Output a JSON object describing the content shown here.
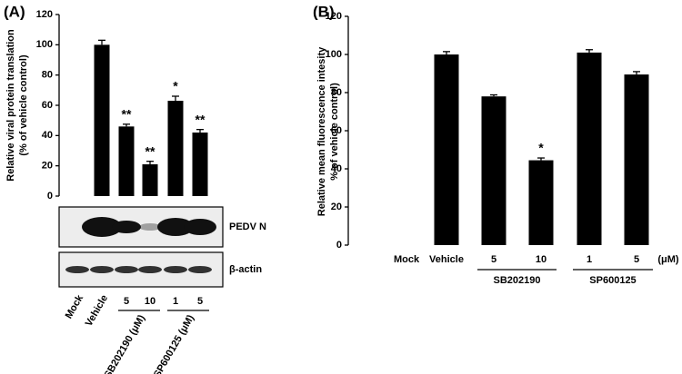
{
  "chart_data": [
    {
      "type": "bar",
      "panel_label": "(A)",
      "y_label": [
        "Relative viral protein translation",
        "(% of vehicle control)"
      ],
      "categories": [
        "Mock",
        "Vehicle",
        "5",
        "10",
        "1",
        "5"
      ],
      "values": [
        0,
        100,
        46,
        21,
        63,
        42
      ],
      "errors": [
        0,
        3,
        1.5,
        2,
        3,
        2
      ],
      "annotations": [
        null,
        null,
        "**",
        "**",
        "*",
        "**"
      ],
      "color": "#000000",
      "ylim": [
        0,
        120
      ],
      "yticks": [
        0,
        20,
        40,
        60,
        80,
        100,
        120
      ],
      "groups": [
        "SB202190 (μM)",
        "SP600125 (μM)"
      ],
      "blot_labels": [
        "PEDV N",
        "β-actin"
      ]
    },
    {
      "type": "bar",
      "panel_label": "(B)",
      "y_label": [
        "Relative mean fluorescence intesity",
        "% of vehicle control)"
      ],
      "categories": [
        "Mock",
        "Vehicle",
        "5",
        "10",
        "1",
        "5"
      ],
      "values": [
        0,
        100,
        78,
        44.5,
        101,
        89.5
      ],
      "errors": [
        0,
        1.5,
        0.8,
        1.2,
        1.5,
        1.5
      ],
      "annotations": [
        null,
        null,
        null,
        "*",
        null,
        null
      ],
      "color": "#000000",
      "ylim": [
        0,
        120
      ],
      "yticks": [
        0,
        20,
        40,
        60,
        80,
        100,
        120
      ],
      "groups": [
        "SB202190",
        "SP600125"
      ],
      "unit_label": "(μM)"
    }
  ]
}
